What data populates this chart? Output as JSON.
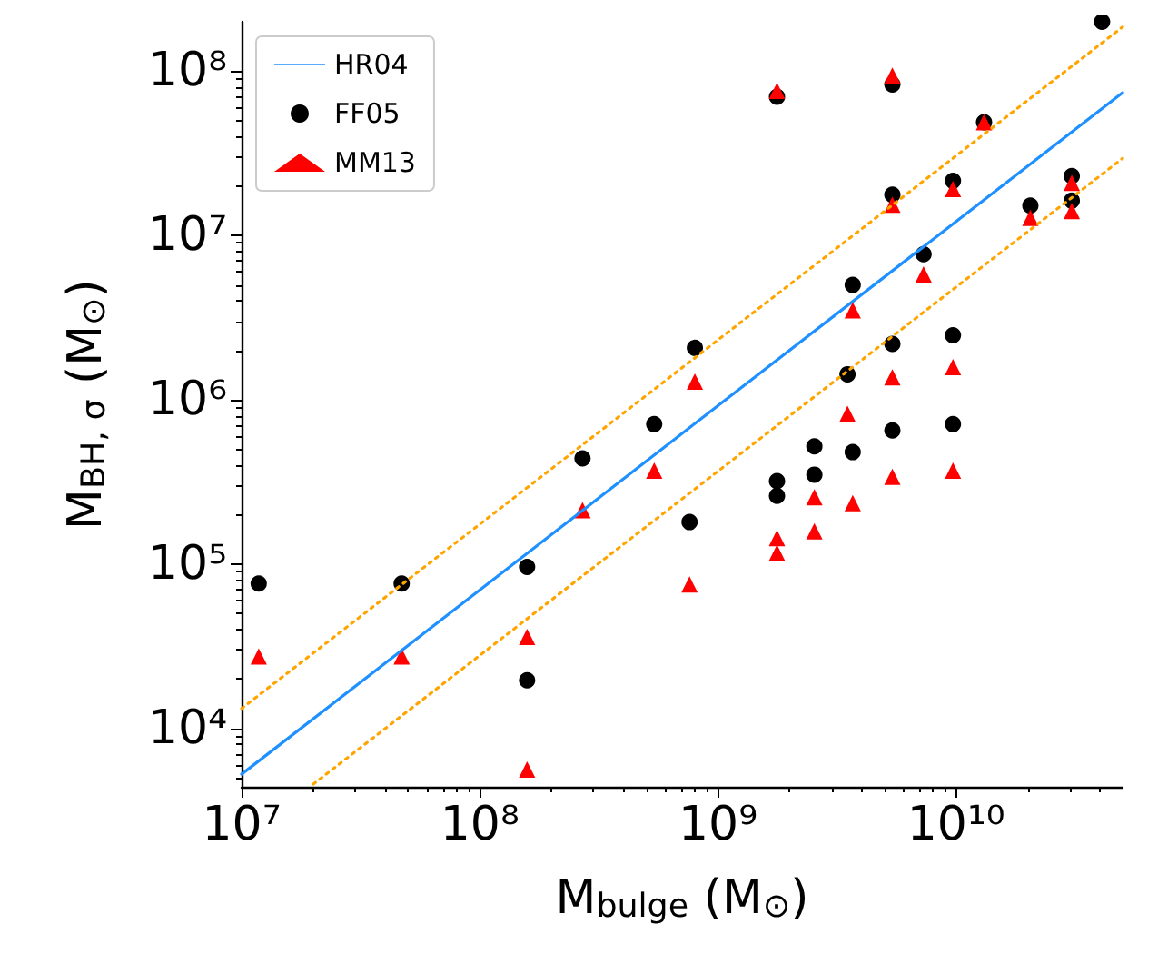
{
  "chart_data": {
    "type": "scatter",
    "xlabel": "M$_{bulge}$ (M$_{⊙}$)",
    "ylabel": "M$_{BH, σ}$ (M$_{⊙}$)",
    "log": "xy",
    "grid": false,
    "legend": "top left",
    "xlim": [
      10000000,
      50000000000
    ],
    "ylim": [
      4400,
      200000000
    ],
    "xticks": [
      {
        "value": 10000000,
        "label": "10⁷"
      },
      {
        "value": 100000000,
        "label": "10⁸"
      },
      {
        "value": 1000000000,
        "label": "10⁹"
      },
      {
        "value": 10000000000,
        "label": "10¹⁰"
      }
    ],
    "yticks": [
      {
        "value": 10000,
        "label": "10⁴"
      },
      {
        "value": 100000,
        "label": "10⁵"
      },
      {
        "value": 1000000,
        "label": "10⁶"
      },
      {
        "value": 10000000,
        "label": "10⁷"
      },
      {
        "value": 100000000,
        "label": "10⁸"
      }
    ],
    "series": [
      {
        "name": "HR04",
        "type": "line",
        "color": "#1e90ff",
        "line_style": "solid",
        "marker": "none",
        "x": [
          10000000,
          50000000000
        ],
        "values": [
          5250,
          74000000
        ]
      },
      {
        "type": "line",
        "color": "#ffa500",
        "line_style": "dotted",
        "marker": "none",
        "x": [
          10000000,
          50000000000
        ],
        "values": [
          13200,
          186000000
        ]
      },
      {
        "type": "line",
        "color": "#ffa500",
        "line_style": "dotted",
        "marker": "none",
        "x": [
          20000000,
          50000000000
        ],
        "values": [
          4570,
          29500000
        ]
      },
      {
        "name": "FF05",
        "color": "#000000",
        "marker": "circle",
        "x": [
          11800000,
          47000000,
          158000000,
          158000000,
          270000000,
          540000000,
          760000000,
          800000000,
          1770000000,
          1770000000,
          1770000000,
          2540000000,
          2540000000,
          3500000000,
          3680000000,
          3680000000,
          5400000000,
          5400000000,
          5400000000,
          5400000000,
          7300000000,
          9700000000,
          9700000000,
          9700000000,
          13100000000,
          20500000000,
          30600000000,
          30600000000,
          41000000000
        ],
        "values": [
          76000,
          76000,
          96000,
          19600,
          440000,
          710000,
          180000,
          2070000,
          70000000,
          320000,
          260000,
          520000,
          350000,
          1430000,
          5000000,
          480000,
          83000000,
          17700000,
          2190000,
          650000,
          7700000,
          21500000,
          2470000,
          710000,
          49000000,
          15200000,
          23000000,
          16300000,
          200000000
        ]
      },
      {
        "name": "MM13",
        "color": "#ff0000",
        "marker": "triangle",
        "x": [
          11800000,
          47000000,
          158000000,
          158000000,
          270000000,
          540000000,
          760000000,
          800000000,
          1770000000,
          1770000000,
          1770000000,
          2540000000,
          2540000000,
          3500000000,
          3680000000,
          3680000000,
          5400000000,
          5400000000,
          5400000000,
          5400000000,
          7300000000,
          9700000000,
          9700000000,
          9700000000,
          13100000000,
          20500000000,
          30600000000,
          30600000000
        ],
        "values": [
          27400,
          27400,
          36000,
          5600,
          213000,
          370000,
          75000,
          1290000,
          76000000,
          144000,
          117000,
          255000,
          158000,
          820000,
          3500000,
          235000,
          94000000,
          15400000,
          1370000,
          340000,
          5800000,
          19200000,
          1580000,
          370000,
          49000000,
          12800000,
          20900000,
          14100000
        ]
      }
    ]
  }
}
